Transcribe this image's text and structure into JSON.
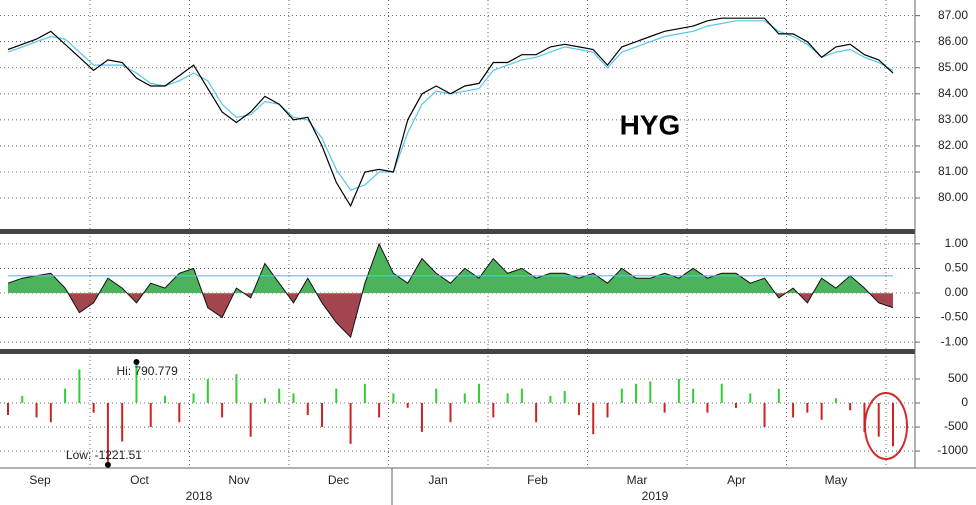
{
  "chart_data": [
    {
      "type": "line",
      "annotation": "HYG",
      "ylim": [
        78.85,
        87.6
      ],
      "yticks": [
        {
          "value": 80,
          "label": "80.00"
        },
        {
          "value": 81,
          "label": "81.00"
        },
        {
          "value": 82,
          "label": "82.00"
        },
        {
          "value": 83,
          "label": "83.00"
        },
        {
          "value": 84,
          "label": "84.00"
        },
        {
          "value": 85,
          "label": "85.00"
        },
        {
          "value": 86,
          "label": "86.00"
        },
        {
          "value": 87,
          "label": "87.00"
        }
      ],
      "grid": true,
      "series": [
        {
          "color": "#000000",
          "values": [
            85.7,
            85.9,
            86.1,
            86.4,
            85.9,
            85.4,
            84.9,
            85.3,
            85.2,
            84.6,
            84.3,
            84.3,
            84.7,
            85.1,
            84.2,
            83.3,
            82.9,
            83.3,
            83.9,
            83.6,
            83.0,
            83.1,
            82.0,
            80.6,
            79.7,
            81.0,
            81.1,
            81.0,
            83.0,
            84.0,
            84.3,
            84.0,
            84.3,
            84.4,
            85.2,
            85.2,
            85.5,
            85.5,
            85.8,
            85.9,
            85.8,
            85.7,
            85.1,
            85.8,
            86.0,
            86.2,
            86.4,
            86.5,
            86.6,
            86.8,
            86.9,
            86.9,
            86.9,
            86.9,
            86.3,
            86.3,
            86.0,
            85.4,
            85.8,
            85.9,
            85.5,
            85.3,
            84.8
          ]
        },
        {
          "color": "#55c8e8",
          "values": [
            85.6,
            85.8,
            86.0,
            86.2,
            86.1,
            85.6,
            85.1,
            85.1,
            85.1,
            84.8,
            84.4,
            84.3,
            84.5,
            84.8,
            84.5,
            83.6,
            83.1,
            83.2,
            83.7,
            83.6,
            83.1,
            83.0,
            82.3,
            81.1,
            80.3,
            80.5,
            81.0,
            81.0,
            82.5,
            83.6,
            84.1,
            84.0,
            84.1,
            84.2,
            84.9,
            85.1,
            85.3,
            85.4,
            85.6,
            85.8,
            85.7,
            85.6,
            85.0,
            85.6,
            85.8,
            86.0,
            86.2,
            86.3,
            86.4,
            86.6,
            86.7,
            86.8,
            86.8,
            86.8,
            86.4,
            86.2,
            85.9,
            85.4,
            85.6,
            85.7,
            85.4,
            85.2,
            84.9
          ]
        }
      ]
    },
    {
      "type": "area",
      "ylim": [
        -1.12,
        1.16
      ],
      "yticks": [
        {
          "value": 1,
          "label": "1.00"
        },
        {
          "value": 0.5,
          "label": "0.50"
        },
        {
          "value": 0,
          "label": "0.00"
        },
        {
          "value": -0.5,
          "label": "-0.50"
        },
        {
          "value": -1,
          "label": "-1.00"
        }
      ],
      "grid": true,
      "positive_color": "#4cb35c",
      "negative_color": "#a3454f",
      "reference_line": {
        "value": 0.35,
        "color": "#3fd0e0"
      },
      "values": [
        0.2,
        0.3,
        0.35,
        0.4,
        0.1,
        -0.4,
        -0.2,
        0.3,
        0.1,
        -0.2,
        0.2,
        0.1,
        0.4,
        0.5,
        -0.3,
        -0.5,
        0.1,
        -0.1,
        0.6,
        0.2,
        -0.2,
        0.3,
        -0.2,
        -0.6,
        -0.9,
        0.2,
        1.0,
        0.4,
        0.2,
        0.7,
        0.4,
        0.2,
        0.5,
        0.3,
        0.7,
        0.4,
        0.5,
        0.3,
        0.4,
        0.4,
        0.3,
        0.4,
        0.2,
        0.5,
        0.3,
        0.3,
        0.4,
        0.3,
        0.5,
        0.3,
        0.4,
        0.4,
        0.2,
        0.3,
        -0.1,
        0.1,
        -0.2,
        0.3,
        0.1,
        0.35,
        0.1,
        -0.2,
        -0.3
      ]
    },
    {
      "type": "bar",
      "ylim": [
        -1290,
        1020
      ],
      "yticks": [
        500,
        0,
        -500,
        -1000
      ],
      "grid": true,
      "positive_color": "#33cc33",
      "negative_color": "#cc2222",
      "annotations": [
        "Hi: 790.779",
        "Low: -1221.51"
      ],
      "values": [
        -250,
        150,
        -300,
        -400,
        300,
        700,
        -200,
        -1221.51,
        -800,
        790.779,
        -500,
        150,
        -400,
        200,
        500,
        -300,
        600,
        -700,
        100,
        300,
        200,
        -250,
        -500,
        300,
        -850,
        400,
        -300,
        200,
        -100,
        -600,
        300,
        -400,
        200,
        400,
        -300,
        200,
        300,
        -400,
        150,
        250,
        -250,
        -650,
        -300,
        300,
        400,
        450,
        -200,
        500,
        300,
        -200,
        400,
        -100,
        200,
        -500,
        300,
        -300,
        -200,
        -350,
        100,
        -150,
        -600,
        -700,
        -900
      ]
    }
  ],
  "x_axis": {
    "months": [
      "Sep",
      "Oct",
      "Nov",
      "Dec",
      "Jan",
      "Feb",
      "Mar",
      "Apr",
      "May"
    ],
    "years": [
      "2018",
      "2019"
    ]
  }
}
